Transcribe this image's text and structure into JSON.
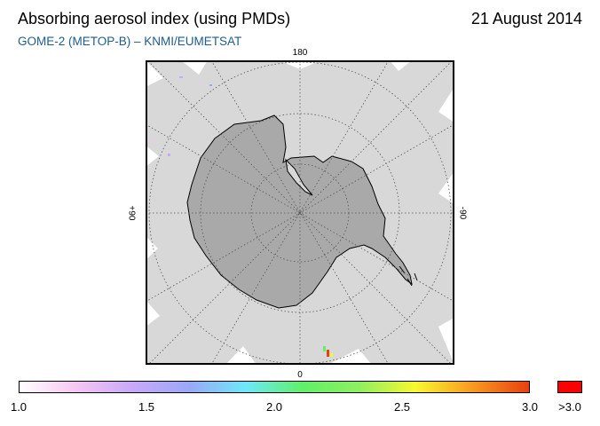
{
  "header": {
    "title": "Absorbing aerosol index (using PMDs)",
    "date": "21 August 2014",
    "subtitle": "GOME-2 (METOP-B)  –  KNMI/EUMETSAT"
  },
  "map": {
    "projection": "south-polar stereographic",
    "lon_labels": {
      "top": "180",
      "bottom": "0",
      "left": "+90",
      "right": "-90"
    },
    "colors": {
      "background": "#ffffff",
      "no_data": "#d8d8d8",
      "land": "#a9a9a9",
      "coastline": "#000000",
      "graticule": "#555555"
    }
  },
  "colorbar": {
    "ticks": [
      {
        "label": "1.0",
        "value": 1.0
      },
      {
        "label": "1.5",
        "value": 1.5
      },
      {
        "label": "2.0",
        "value": 2.0
      },
      {
        "label": "2.5",
        "value": 2.5
      },
      {
        "label": "3.0",
        "value": 3.0
      }
    ],
    "overflow_label": ">3.0",
    "overflow_color": "#ff0000",
    "gradient": [
      "#ffffff",
      "#f6c6f2",
      "#c8a8f8",
      "#9aa8f8",
      "#6ee8f8",
      "#60f06a",
      "#8ef060",
      "#f8f830",
      "#f89a20",
      "#e84010"
    ]
  },
  "chart_data": {
    "type": "heatmap",
    "title": "Absorbing aerosol index (using PMDs)",
    "subtitle": "GOME-2 (METOP-B)  –  KNMI/EUMETSAT",
    "date": "21 August 2014",
    "color_scale": {
      "min": 1.0,
      "max": 3.0,
      "overflow": ">3.0"
    }
  }
}
